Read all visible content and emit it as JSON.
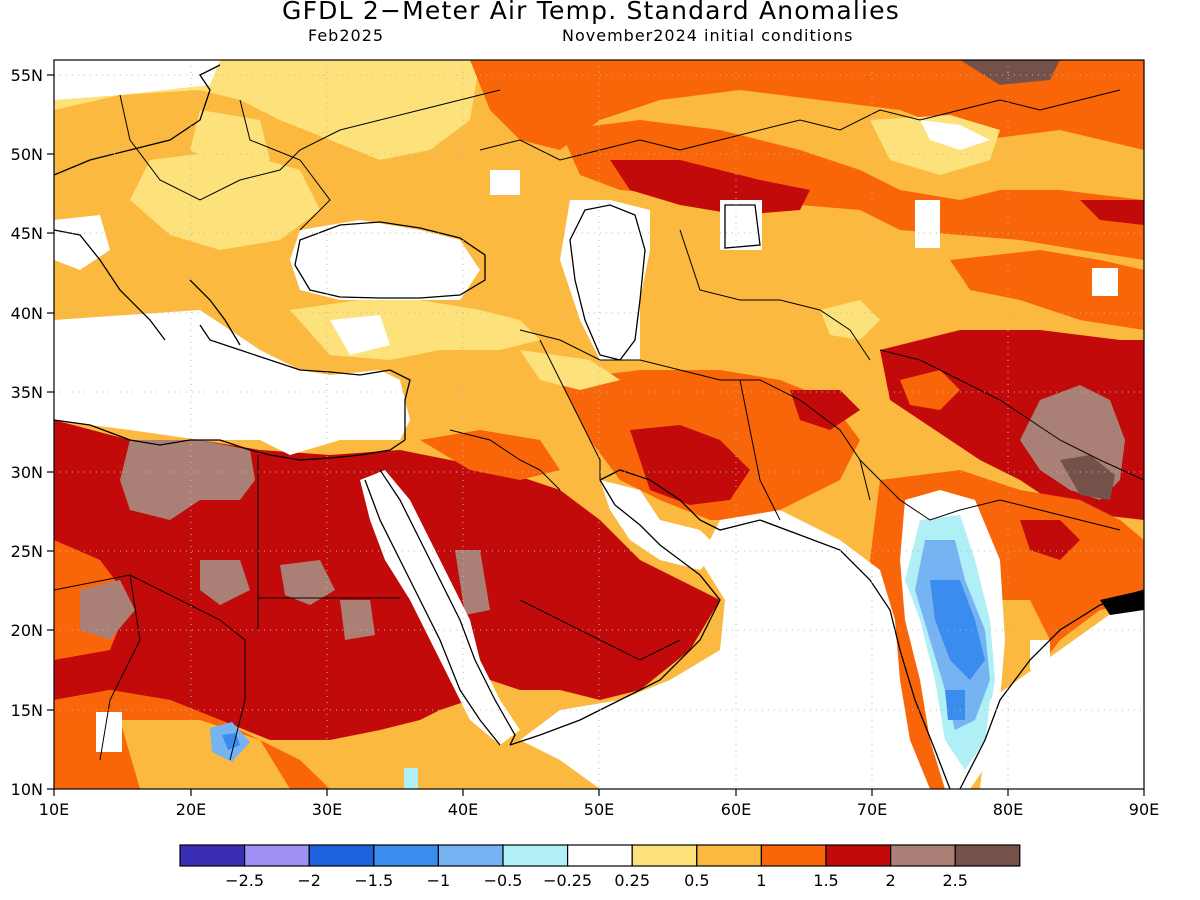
{
  "title": "GFDL 2−Meter Air Temp. Standard Anomalies",
  "subtitle_left": "Feb2025",
  "subtitle_right": "November2024 initial conditions",
  "lat_labels": [
    "55N",
    "50N",
    "45N",
    "40N",
    "35N",
    "30N",
    "25N",
    "20N",
    "15N",
    "10N"
  ],
  "lon_labels": [
    "10E",
    "20E",
    "30E",
    "40E",
    "50E",
    "60E",
    "70E",
    "80E",
    "90E"
  ],
  "colorbar": {
    "colors": [
      "#3a2fb4",
      "#9f90f5",
      "#1f62dd",
      "#3a8def",
      "#76b3f2",
      "#b0eff5",
      "#ffffff",
      "#fde27c",
      "#fbb93f",
      "#f96609",
      "#c20a0a",
      "#aa8076",
      "#74524a"
    ],
    "labels": [
      "−2.5",
      "−2",
      "−1.5",
      "−1",
      "−0.5",
      "−0.25",
      "0.25",
      "0.5",
      "1",
      "1.5",
      "2",
      "2.5"
    ]
  },
  "map": {
    "lon_range": [
      10,
      90
    ],
    "lat_range": [
      10,
      56
    ],
    "grid": "dotted"
  }
}
